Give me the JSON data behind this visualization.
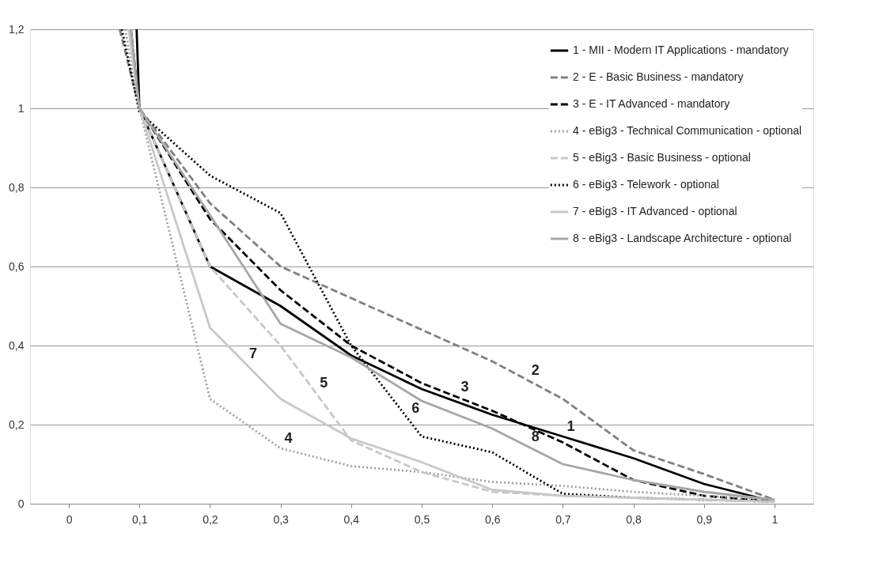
{
  "chart_data": {
    "type": "line",
    "xlim": [
      -0.055,
      1.055
    ],
    "xticks": [
      {
        "value": 0,
        "label": "0"
      },
      {
        "value": 0.1,
        "label": "0,1"
      },
      {
        "value": 0.2,
        "label": "0,2"
      },
      {
        "value": 0.3,
        "label": "0,3"
      },
      {
        "value": 0.4,
        "label": "0,4"
      },
      {
        "value": 0.5,
        "label": "0,5"
      },
      {
        "value": 0.6,
        "label": "0,6"
      },
      {
        "value": 0.7,
        "label": "0,7"
      },
      {
        "value": 0.8,
        "label": "0,8"
      },
      {
        "value": 0.9,
        "label": "0,9"
      },
      {
        "value": 1,
        "label": "1"
      }
    ],
    "ylim": [
      0,
      1.2
    ],
    "yticks": [
      0,
      {
        "value": 0.2,
        "label": "0,2"
      },
      {
        "value": 0.4,
        "label": "0,4"
      },
      {
        "value": 0.6,
        "label": "0,6"
      },
      {
        "value": 0.8,
        "label": "0,8"
      },
      1,
      {
        "value": 1.2,
        "label": "1,2"
      }
    ],
    "grid": "y",
    "legend": "top right",
    "marker": "none",
    "series": [
      {
        "name": "1 - MII - Modern IT Applications - mandatory",
        "color": "#000000",
        "line_style": "solid",
        "x": [
          0.096,
          0.1,
          0.2,
          0.3,
          0.4,
          0.5,
          0.6,
          0.7,
          0.8,
          0.9,
          1
        ],
        "values": [
          1.2,
          1,
          0.6,
          0.5,
          0.375,
          0.29,
          0.225,
          0.17,
          0.115,
          0.05,
          0.005
        ]
      },
      {
        "name": "2 - E - Basic Business - mandatory",
        "color": "#808080",
        "line_style": "dashed",
        "x": [
          0.072,
          0.1,
          0.2,
          0.3,
          0.4,
          0.5,
          0.6,
          0.7,
          0.8,
          0.9,
          1
        ],
        "values": [
          1.2,
          1,
          0.76,
          0.6,
          0.52,
          0.44,
          0.36,
          0.265,
          0.135,
          0.075,
          0.01
        ]
      },
      {
        "name": "3 - E - IT Advanced - mandatory",
        "color": "#000000",
        "line_style": "dashed",
        "x": [
          0.088,
          0.1,
          0.2,
          0.3,
          0.4,
          0.5,
          0.6,
          0.7,
          0.8,
          0.9,
          1
        ],
        "values": [
          1.2,
          1,
          0.72,
          0.54,
          0.4,
          0.305,
          0.235,
          0.155,
          0.06,
          0.02,
          0.005
        ]
      },
      {
        "name": "4 - eBig3 - Technical Communication - optional",
        "color": "#a0a0a0",
        "line_style": "dotted",
        "x": [
          0.08,
          0.1,
          0.2,
          0.3,
          0.4,
          0.5,
          0.6,
          0.7,
          0.8,
          0.9,
          1
        ],
        "values": [
          1.2,
          1,
          0.265,
          0.14,
          0.095,
          0.08,
          0.055,
          0.045,
          0.03,
          0.02,
          0.01
        ]
      },
      {
        "name": "5 - eBig3 - Basic Business - optional",
        "color": "#c8c8c8",
        "line_style": "dashed",
        "x": [
          0.085,
          0.1,
          0.2,
          0.3,
          0.4,
          0.5,
          0.6,
          0.7,
          0.8,
          0.9,
          1
        ],
        "values": [
          1.2,
          1,
          0.6,
          0.4,
          0.16,
          0.08,
          0.03,
          0.02,
          0.015,
          0.01,
          0.005
        ]
      },
      {
        "name": "6 - eBig3 - Telework - optional",
        "color": "#000000",
        "line_style": "dotted",
        "x": [
          0.075,
          0.1,
          0.2,
          0.3,
          0.4,
          0.5,
          0.6,
          0.7,
          0.8,
          0.9,
          1
        ],
        "values": [
          1.2,
          0.99,
          0.83,
          0.735,
          0.4,
          0.17,
          0.13,
          0.025,
          0.015,
          0.01,
          0.005
        ]
      },
      {
        "name": "7 - eBig3 - IT Advanced - optional",
        "color": "#c8c8c8",
        "line_style": "solid",
        "x": [
          0.085,
          0.1,
          0.2,
          0.3,
          0.4,
          0.5,
          0.6,
          0.7,
          0.8,
          0.9,
          1
        ],
        "values": [
          1.2,
          1,
          0.445,
          0.265,
          0.165,
          0.105,
          0.035,
          0.02,
          0.015,
          0.01,
          0.005
        ]
      },
      {
        "name": "8 - eBig3 - Landscape Architecture - optional",
        "color": "#a6a6a6",
        "line_style": "solid",
        "x": [
          0.088,
          0.1,
          0.2,
          0.3,
          0.4,
          0.5,
          0.6,
          0.7,
          0.8,
          0.9,
          1
        ],
        "values": [
          1.2,
          1,
          0.73,
          0.455,
          0.37,
          0.26,
          0.19,
          0.1,
          0.06,
          0.03,
          0.01
        ]
      }
    ],
    "annotations": [
      {
        "text": "1",
        "x": 0.7,
        "y": 0.17
      },
      {
        "text": "2",
        "x": 0.65,
        "y": 0.3125
      },
      {
        "text": "3",
        "x": 0.55,
        "y": 0.27
      },
      {
        "text": "4",
        "x": 0.3,
        "y": 0.14
      },
      {
        "text": "5",
        "x": 0.35,
        "y": 0.28
      },
      {
        "text": "6",
        "x": 0.48,
        "y": 0.216
      },
      {
        "text": "7",
        "x": 0.25,
        "y": 0.355
      },
      {
        "text": "8",
        "x": 0.65,
        "y": 0.145
      }
    ]
  }
}
